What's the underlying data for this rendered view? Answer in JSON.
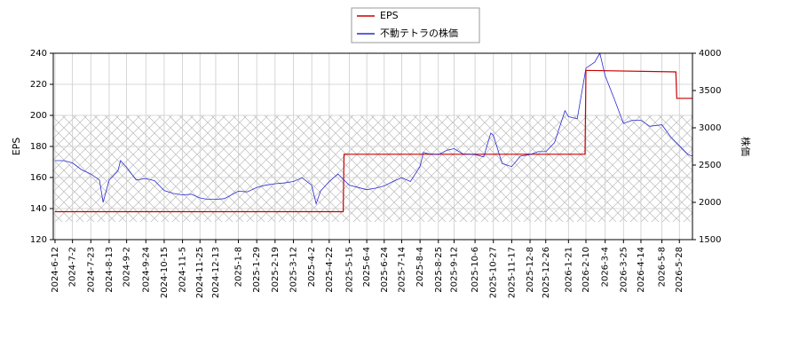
{
  "chart_data": {
    "type": "line",
    "y_label": "EPS",
    "y2_label": "株価",
    "xlim": [
      "2024-6-10",
      "2026-6-12"
    ],
    "xticks": [
      "2024-6-12",
      "2024-7-2",
      "2024-7-23",
      "2024-8-13",
      "2024-9-2",
      "2024-9-24",
      "2024-10-15",
      "2024-11-5",
      "2024-11-25",
      "2024-12-13",
      "2025-1-8",
      "2025-1-29",
      "2025-2-19",
      "2025-3-12",
      "2025-4-2",
      "2025-4-22",
      "2025-5-15",
      "2025-6-4",
      "2025-6-24",
      "2025-7-14",
      "2025-8-4",
      "2025-8-25",
      "2025-9-12",
      "2025-10-6",
      "2025-10-27",
      "2025-11-17",
      "2025-12-8",
      "2025-12-26",
      "2026-1-21",
      "2026-2-10",
      "2026-3-4",
      "2026-3-25",
      "2026-4-14",
      "2026-5-8",
      "2026-5-28"
    ],
    "ylim": [
      120,
      240
    ],
    "yticks": [
      120,
      140,
      160,
      180,
      200,
      220,
      240
    ],
    "y2lim": [
      1500,
      4000
    ],
    "y2ticks": [
      1500,
      2000,
      2500,
      3000,
      3500,
      4000
    ],
    "grid": true,
    "legend": "top",
    "series": [
      {
        "name": "EPS",
        "color": "#cc0000",
        "x": [
          "2024-6-12",
          "2025-5-8",
          "2025-5-9",
          "2026-2-9",
          "2026-2-10",
          "2026-5-24",
          "2026-5-25",
          "2026-6-12"
        ],
        "values": [
          138,
          138,
          175,
          175,
          229,
          228,
          211,
          211
        ]
      },
      {
        "name": "不動テトラの株価",
        "color": "#2a2ad0",
        "axis": "y2",
        "x": [
          "2024-6-12",
          "2024-6-22",
          "2024-7-2",
          "2024-7-12",
          "2024-7-23",
          "2024-8-2",
          "2024-8-6",
          "2024-8-13",
          "2024-8-23",
          "2024-8-26",
          "2024-9-2",
          "2024-9-13",
          "2024-9-24",
          "2024-10-4",
          "2024-10-15",
          "2024-10-25",
          "2024-11-5",
          "2024-11-15",
          "2024-11-25",
          "2024-12-4",
          "2024-12-13",
          "2024-12-23",
          "2025-1-8",
          "2025-1-18",
          "2025-1-29",
          "2025-2-8",
          "2025-2-19",
          "2025-3-1",
          "2025-3-12",
          "2025-3-22",
          "2025-4-2",
          "2025-4-7",
          "2025-4-12",
          "2025-4-22",
          "2025-5-2",
          "2025-5-15",
          "2025-5-25",
          "2025-6-4",
          "2025-6-14",
          "2025-6-24",
          "2025-7-4",
          "2025-7-14",
          "2025-7-24",
          "2025-8-4",
          "2025-8-8",
          "2025-8-14",
          "2025-8-25",
          "2025-9-4",
          "2025-9-12",
          "2025-9-22",
          "2025-10-6",
          "2025-10-16",
          "2025-10-24",
          "2025-10-27",
          "2025-11-6",
          "2025-11-17",
          "2025-11-27",
          "2025-12-8",
          "2025-12-17",
          "2025-12-26",
          "2026-1-5",
          "2026-1-17",
          "2026-1-21",
          "2026-1-31",
          "2026-2-10",
          "2026-2-20",
          "2026-2-26",
          "2026-3-4",
          "2026-3-14",
          "2026-3-25",
          "2026-4-4",
          "2026-4-14",
          "2026-4-24",
          "2026-5-8",
          "2026-5-18",
          "2026-5-28",
          "2026-6-7",
          "2026-6-12"
        ],
        "values": [
          2560,
          2560,
          2530,
          2440,
          2380,
          2300,
          2000,
          2300,
          2420,
          2560,
          2470,
          2300,
          2320,
          2290,
          2160,
          2120,
          2100,
          2110,
          2060,
          2040,
          2040,
          2050,
          2150,
          2140,
          2200,
          2230,
          2250,
          2260,
          2280,
          2330,
          2230,
          1980,
          2150,
          2280,
          2380,
          2230,
          2200,
          2170,
          2190,
          2220,
          2280,
          2330,
          2280,
          2480,
          2670,
          2650,
          2640,
          2700,
          2720,
          2650,
          2640,
          2610,
          2930,
          2900,
          2520,
          2480,
          2620,
          2640,
          2680,
          2680,
          2800,
          3230,
          3150,
          3120,
          3800,
          3880,
          4000,
          3700,
          3400,
          3060,
          3100,
          3100,
          3020,
          3040,
          2880,
          2760,
          2640,
          2620
        ]
      }
    ]
  }
}
